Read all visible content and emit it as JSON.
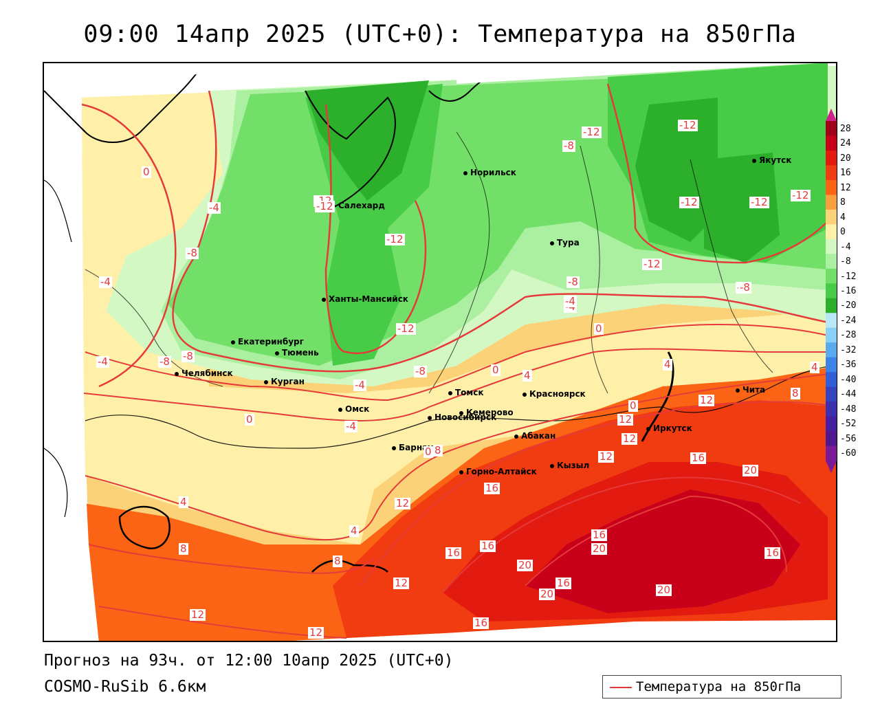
{
  "title": "09:00 14апр 2025 (UTC+0): Температура на 850гПа",
  "footer": {
    "forecast": "Прогноз на 93ч. от 12:00 10апр 2025 (UTC+0)",
    "model": "COSMO-RuSib 6.6км"
  },
  "legend": {
    "label": "Температура на 850гПа",
    "line_color": "#e53a3a"
  },
  "colorbar": {
    "labels": [
      "28",
      "24",
      "20",
      "16",
      "12",
      "8",
      "4",
      "0",
      "-4",
      "-8",
      "-12",
      "-16",
      "-20",
      "-24",
      "-28",
      "-32",
      "-36",
      "-40",
      "-44",
      "-48",
      "-52",
      "-56",
      "-60"
    ],
    "colors": [
      "#a0001a",
      "#c8001a",
      "#e21a10",
      "#f03c10",
      "#fa6414",
      "#f8a040",
      "#fcd278",
      "#fef0a8",
      "#d4f8c4",
      "#aaf0a0",
      "#72e068",
      "#48cc48",
      "#2cb02c",
      "#b8e8f8",
      "#88d0f8",
      "#5aaaf0",
      "#3c84e8",
      "#3060d8",
      "#3444c0",
      "#3c30b0",
      "#4420a0",
      "#501890",
      "#7a1a96"
    ]
  },
  "cities": [
    {
      "name": "Салехард"
    },
    {
      "name": "Норильск"
    },
    {
      "name": "Якутск"
    },
    {
      "name": "Тура"
    },
    {
      "name": "Ханты-Мансийск"
    },
    {
      "name": "Екатеринбург"
    },
    {
      "name": "Тюмень"
    },
    {
      "name": "Челябинск"
    },
    {
      "name": "Курган"
    },
    {
      "name": "Омск"
    },
    {
      "name": "Новосибирск"
    },
    {
      "name": "Томск"
    },
    {
      "name": "Кемерово"
    },
    {
      "name": "Красноярск"
    },
    {
      "name": "Абакан"
    },
    {
      "name": "Барнаул"
    },
    {
      "name": "Горно-Алтайск"
    },
    {
      "name": "Кызыл"
    },
    {
      "name": "Иркутск"
    },
    {
      "name": "Чита"
    }
  ],
  "isolines": [
    {
      "v": "0"
    },
    {
      "v": "-4"
    },
    {
      "v": "-4"
    },
    {
      "v": "-8"
    },
    {
      "v": "-12"
    },
    {
      "v": "-12"
    },
    {
      "v": "-12"
    },
    {
      "v": "-12"
    },
    {
      "v": "-8"
    },
    {
      "v": "-12"
    },
    {
      "v": "-12"
    },
    {
      "v": "-12"
    },
    {
      "v": "-12"
    },
    {
      "v": "-8"
    },
    {
      "v": "-8"
    },
    {
      "v": "-4"
    },
    {
      "v": "0"
    },
    {
      "v": "-8"
    },
    {
      "v": "-4"
    },
    {
      "v": "-8"
    },
    {
      "v": "-4"
    },
    {
      "v": "0"
    },
    {
      "v": "0"
    },
    {
      "v": "4"
    },
    {
      "v": "4"
    },
    {
      "v": "0"
    },
    {
      "v": "8"
    },
    {
      "v": "12"
    },
    {
      "v": "12"
    },
    {
      "v": "4"
    },
    {
      "v": "12"
    },
    {
      "v": "12"
    },
    {
      "v": "16"
    },
    {
      "v": "20"
    },
    {
      "v": "16"
    },
    {
      "v": "20"
    },
    {
      "v": "16"
    },
    {
      "v": "16"
    },
    {
      "v": "12"
    },
    {
      "v": "4"
    },
    {
      "v": "8"
    },
    {
      "v": "4"
    },
    {
      "v": "8"
    },
    {
      "v": "16"
    },
    {
      "v": "20"
    },
    {
      "v": "16"
    },
    {
      "v": "20"
    },
    {
      "v": "20"
    },
    {
      "v": "12"
    },
    {
      "v": "12"
    },
    {
      "v": "12"
    },
    {
      "v": "16"
    },
    {
      "v": "-8"
    },
    {
      "v": "-4"
    },
    {
      "v": "-8"
    },
    {
      "v": "-12"
    },
    {
      "v": "-12"
    },
    {
      "v": "-4"
    },
    {
      "v": "0"
    },
    {
      "v": "16"
    },
    {
      "v": "8"
    }
  ]
}
